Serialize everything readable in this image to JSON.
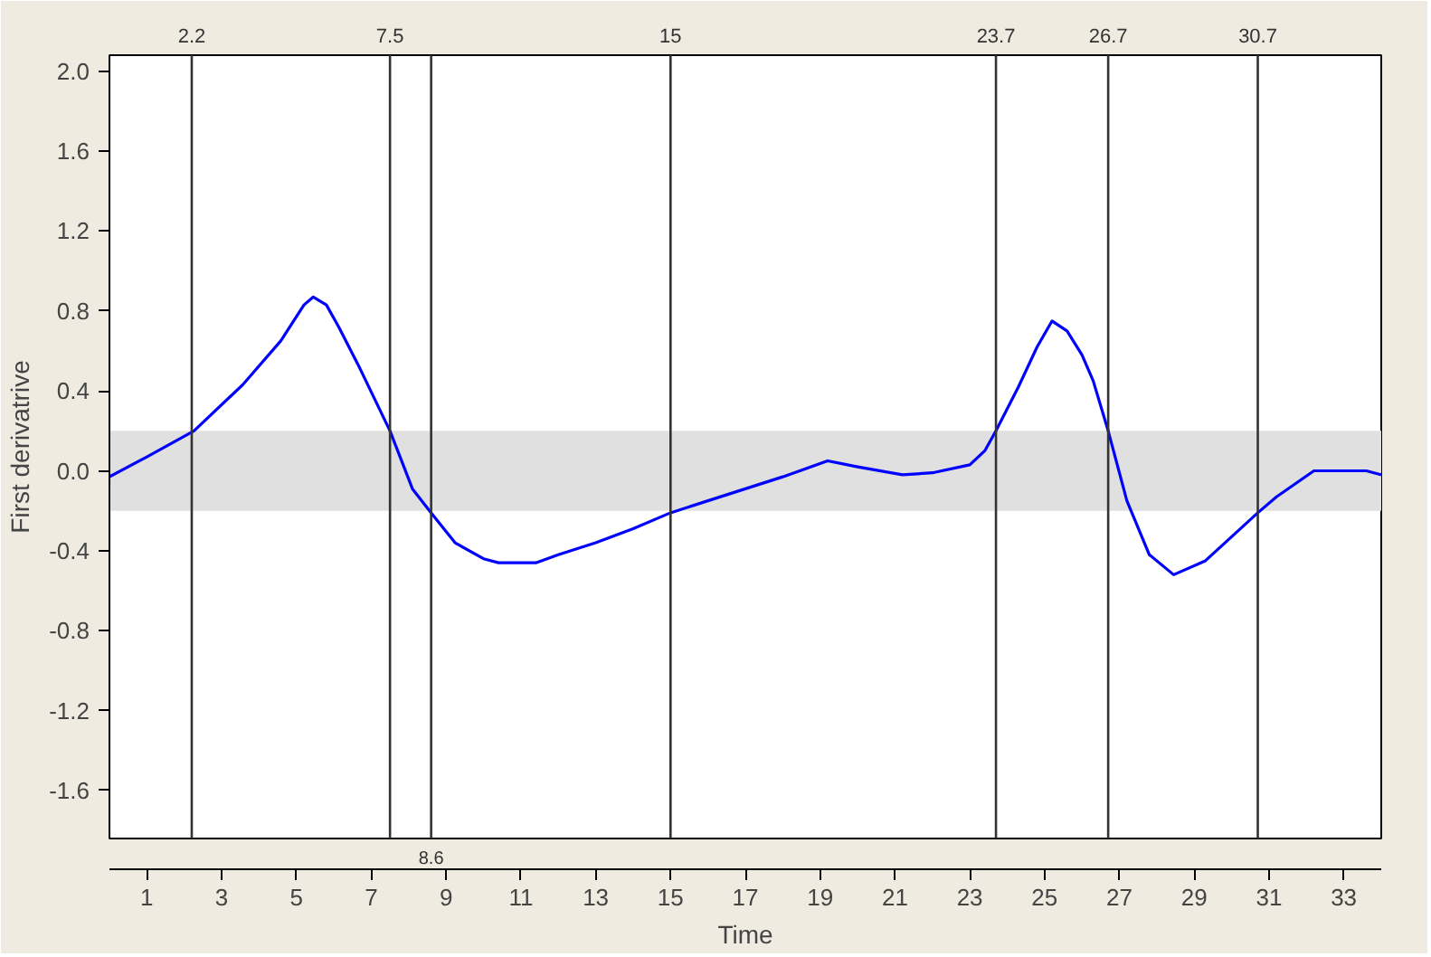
{
  "chart_data": {
    "type": "line",
    "xlabel": "Time",
    "ylabel": "First derivatrive",
    "x": [
      0,
      1,
      2.26,
      3.56,
      4.58,
      5.2,
      5.45,
      5.8,
      6.13,
      6.65,
      7.5,
      8.1,
      8.6,
      9.24,
      10.0,
      10.4,
      11.4,
      12,
      13,
      14,
      15,
      16,
      17,
      18,
      19.2,
      20,
      21.2,
      22,
      23,
      23.4,
      23.7,
      24.3,
      24.8,
      25.2,
      25.6,
      26.0,
      26.3,
      26.7,
      27.2,
      27.8,
      28.45,
      29.3,
      30,
      30.7,
      31.2,
      32.2,
      33.6,
      34
    ],
    "series": [
      {
        "color": "#0000ff",
        "values": [
          -0.03,
          0.07,
          0.2,
          0.43,
          0.65,
          0.83,
          0.87,
          0.83,
          0.72,
          0.53,
          0.2,
          -0.09,
          -0.21,
          -0.36,
          -0.44,
          -0.46,
          -0.46,
          -0.42,
          -0.36,
          -0.29,
          -0.21,
          -0.15,
          -0.09,
          -0.03,
          0.05,
          0.02,
          -0.02,
          -0.01,
          0.03,
          0.1,
          0.2,
          0.42,
          0.62,
          0.75,
          0.7,
          0.58,
          0.45,
          0.2,
          -0.15,
          -0.42,
          -0.52,
          -0.45,
          -0.33,
          -0.21,
          -0.13,
          0.0,
          0.0,
          -0.02
        ]
      }
    ],
    "xlim": [
      0,
      34
    ],
    "ylim": [
      -1.84,
      2.08
    ],
    "xticks": [
      1,
      3,
      5,
      7,
      9,
      11,
      13,
      15,
      17,
      19,
      21,
      23,
      25,
      27,
      29,
      31,
      33
    ],
    "yticks": [
      {
        "value": 2.0,
        "label": "2.0"
      },
      {
        "value": 1.6,
        "label": "1.6"
      },
      {
        "value": 1.2,
        "label": "1.2"
      },
      {
        "value": 0.8,
        "label": "0.8"
      },
      {
        "value": 0.4,
        "label": "0.4"
      },
      {
        "value": 0.0,
        "label": "0.0"
      },
      {
        "value": -0.4,
        "label": "-0.4"
      },
      {
        "value": -0.8,
        "label": "-0.8"
      },
      {
        "value": -1.2,
        "label": "-1.2"
      },
      {
        "value": -1.6,
        "label": "-1.6"
      }
    ],
    "ref_lines": [
      {
        "axis": "x",
        "value": 2.2,
        "label": "2.2",
        "color": "#333333"
      },
      {
        "axis": "x",
        "value": 7.5,
        "label": "7.5",
        "color": "#333333"
      },
      {
        "axis": "x",
        "value": 8.6,
        "label": "8.6",
        "color": "#333333"
      },
      {
        "axis": "x",
        "value": 15,
        "label": "15",
        "color": "#333333"
      },
      {
        "axis": "x",
        "value": 23.7,
        "label": "23.7",
        "color": "#333333"
      },
      {
        "axis": "x",
        "value": 26.7,
        "label": "26.7",
        "color": "#333333"
      },
      {
        "axis": "x",
        "value": 30.7,
        "label": "30.7",
        "color": "#333333"
      }
    ],
    "bands": [
      {
        "axis": "y",
        "from": -0.2,
        "to": 0.2,
        "color": "#e0e0e0"
      }
    ],
    "grid": false,
    "marker": "none",
    "line_style": "solid"
  }
}
